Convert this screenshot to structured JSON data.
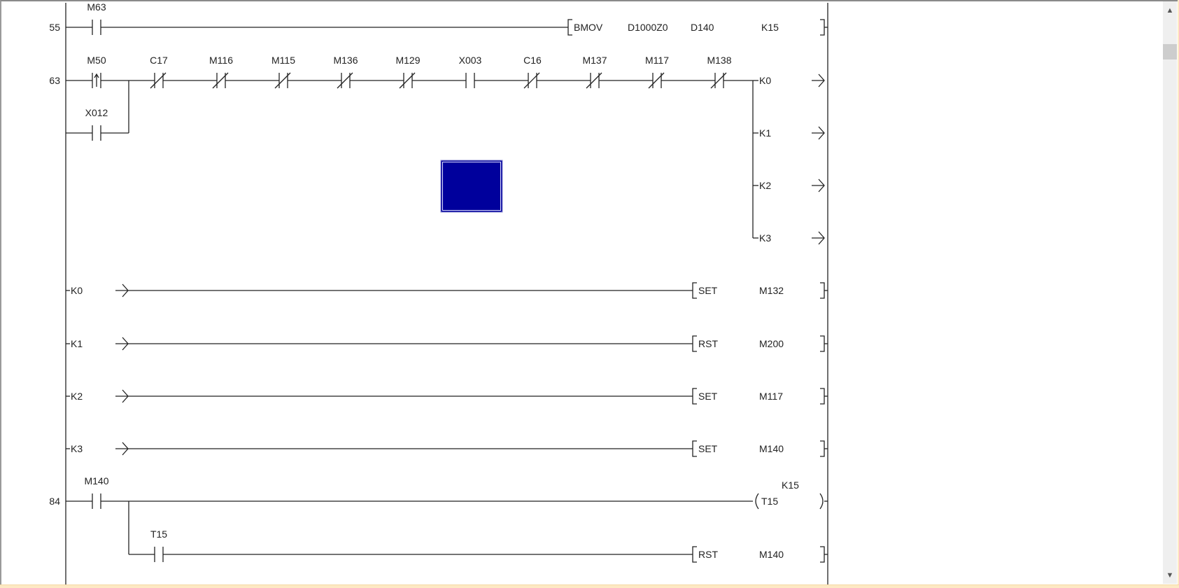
{
  "colors": {
    "line": "#222222",
    "cursor": "#00009c",
    "background": "#ffffff"
  },
  "rungs": [
    {
      "step": "55",
      "contacts": [
        {
          "label": "M63",
          "type": "normally-open"
        }
      ],
      "instruction": {
        "name": "BMOV",
        "operands": [
          "D1000Z0",
          "D140",
          "K15"
        ]
      }
    },
    {
      "step": "63",
      "contacts": [
        {
          "label": "M50",
          "type": "rising-edge"
        },
        {
          "label": "C17",
          "type": "normally-closed"
        },
        {
          "label": "M116",
          "type": "normally-closed"
        },
        {
          "label": "M115",
          "type": "normally-closed"
        },
        {
          "label": "M136",
          "type": "normally-closed"
        },
        {
          "label": "M129",
          "type": "normally-closed"
        },
        {
          "label": "X003",
          "type": "normally-open"
        },
        {
          "label": "C16",
          "type": "normally-closed"
        },
        {
          "label": "M137",
          "type": "normally-closed"
        },
        {
          "label": "M117",
          "type": "normally-closed"
        },
        {
          "label": "M138",
          "type": "normally-closed"
        }
      ],
      "branch": {
        "label": "X012",
        "type": "normally-open"
      },
      "jump_outputs": [
        "K0",
        "K1",
        "K2",
        "K3"
      ]
    }
  ],
  "jump_rows": [
    {
      "label": "K0",
      "instruction": "SET",
      "operand": "M132"
    },
    {
      "label": "K1",
      "instruction": "RST",
      "operand": "M200"
    },
    {
      "label": "K2",
      "instruction": "SET",
      "operand": "M117"
    },
    {
      "label": "K3",
      "instruction": "SET",
      "operand": "M140"
    }
  ],
  "rung84": {
    "step": "84",
    "contact": {
      "label": "M140",
      "type": "normally-open"
    },
    "coil": {
      "name": "T15",
      "setting": "K15"
    },
    "branch": {
      "label": "T15",
      "type": "normally-open",
      "instruction": "RST",
      "operand": "M140"
    }
  },
  "scrollbar": {
    "up_icon": "chevron-up-icon",
    "down_icon": "chevron-down-icon",
    "position": 0.03
  }
}
